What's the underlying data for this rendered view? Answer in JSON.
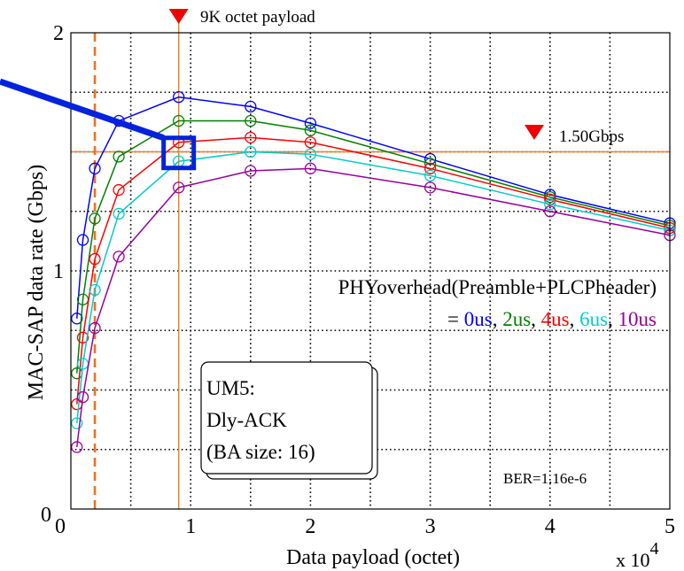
{
  "chart_data": {
    "type": "line",
    "title": "",
    "xlabel": "Data payload (octet)",
    "ylabel": "MAC-SAP data rate (Gbps)",
    "x_multiplier_label": {
      "base": "x 10",
      "exp": "4"
    },
    "xlim": [
      0,
      5
    ],
    "ylim": [
      0,
      2
    ],
    "xticks": [
      {
        "v": 0,
        "label": "0"
      },
      {
        "v": 1,
        "label": "1"
      },
      {
        "v": 2,
        "label": "2"
      },
      {
        "v": 3,
        "label": "3"
      },
      {
        "v": 4,
        "label": "4"
      },
      {
        "v": 5,
        "label": "5"
      }
    ],
    "yticks": [
      {
        "v": 0,
        "label": "0"
      },
      {
        "v": 1,
        "label": "1"
      },
      {
        "v": 2,
        "label": "2"
      }
    ],
    "grid": true,
    "x": [
      0.05,
      0.1,
      0.2,
      0.4,
      0.9,
      1.5,
      2,
      3,
      4,
      5
    ],
    "series": [
      {
        "color": "#0000ff",
        "values": [
          0.8,
          1.13,
          1.43,
          1.63,
          1.73,
          1.69,
          1.62,
          1.47,
          1.32,
          1.2
        ]
      },
      {
        "color": "#008000",
        "values": [
          0.57,
          0.88,
          1.22,
          1.48,
          1.63,
          1.63,
          1.59,
          1.45,
          1.31,
          1.19
        ]
      },
      {
        "color": "#ff0000",
        "values": [
          0.44,
          0.72,
          1.05,
          1.34,
          1.54,
          1.56,
          1.54,
          1.43,
          1.3,
          1.18
        ]
      },
      {
        "color": "#00cccc",
        "values": [
          0.36,
          0.61,
          0.92,
          1.24,
          1.46,
          1.5,
          1.49,
          1.4,
          1.28,
          1.17
        ]
      },
      {
        "color": "#990099",
        "values": [
          0.26,
          0.47,
          0.76,
          1.06,
          1.35,
          1.42,
          1.43,
          1.35,
          1.25,
          1.15
        ]
      }
    ],
    "reference_lines": {
      "horizontal": {
        "y": 1.5,
        "color": "#f08020"
      },
      "vertical_solid": {
        "x": 0.9,
        "color": "#f08020"
      },
      "vertical_dashed": {
        "x": 0.2,
        "color": "#f07020"
      }
    },
    "annotations": {
      "payload_marker": "9K octet payload",
      "rate_marker": "1.50Gbps",
      "phy_overhead": "PHYoverhead(Preamble+PLCPheader)",
      "phy_values": {
        "prefix": "= ",
        "items": [
          {
            "label": "0us",
            "color": "#0000ff"
          },
          {
            "label": "2us",
            "color": "#008000"
          },
          {
            "label": "4us",
            "color": "#ff0000"
          },
          {
            "label": "6us",
            "color": "#00cccc"
          },
          {
            "label": "10us",
            "color": "#990099"
          }
        ],
        "separator": ", "
      },
      "box_lines": [
        "UM5:",
        "Dly-ACK",
        "(BA size: 16)"
      ],
      "ber": "BER=1.16e-6"
    },
    "colors": {
      "reference": "#f08020",
      "highlight": "#0022dd",
      "marker": "#ee0000"
    }
  }
}
